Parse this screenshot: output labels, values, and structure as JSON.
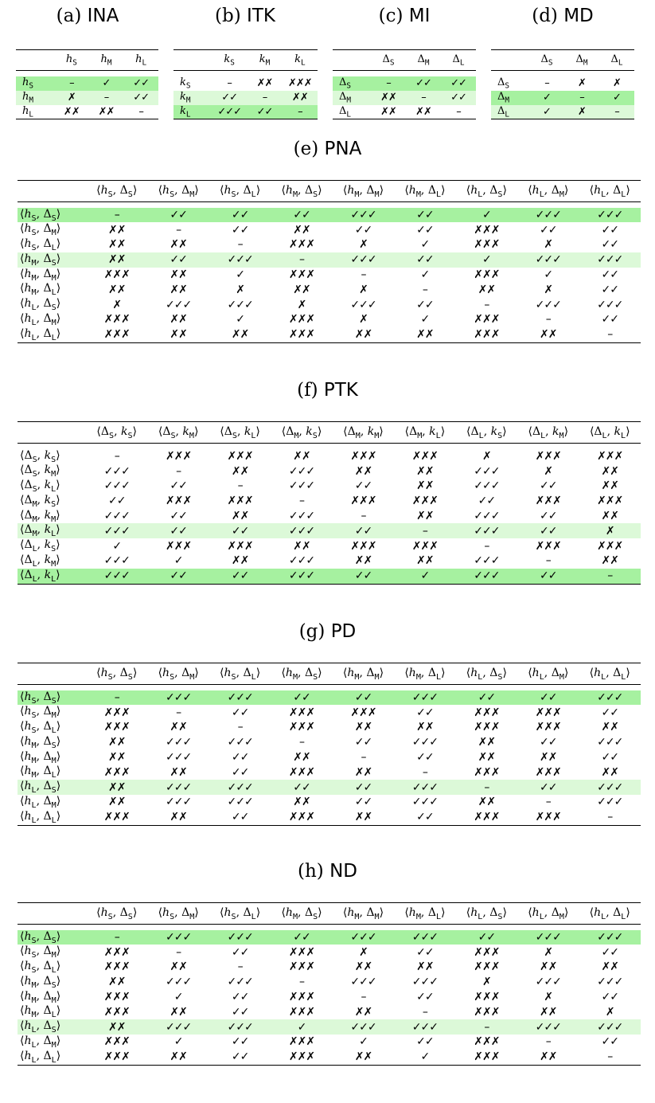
{
  "small_tables": [
    {
      "id": "a",
      "label": "(a)",
      "name": "INA",
      "cols": [
        "h_S",
        "h_M",
        "h_L"
      ],
      "rows": [
        {
          "label": "h_S",
          "cells": [
            "–",
            "✓",
            "✓✓"
          ],
          "hl": "dark"
        },
        {
          "label": "h_M",
          "cells": [
            "✗",
            "–",
            "✓✓"
          ],
          "hl": "light"
        },
        {
          "label": "h_L",
          "cells": [
            "✗✗",
            "✗✗",
            "–"
          ],
          "hl": ""
        }
      ]
    },
    {
      "id": "b",
      "label": "(b)",
      "name": "ITK",
      "cols": [
        "k_S",
        "k_M",
        "k_L"
      ],
      "rows": [
        {
          "label": "k_S",
          "cells": [
            "–",
            "✗✗",
            "✗✗✗"
          ],
          "hl": ""
        },
        {
          "label": "k_M",
          "cells": [
            "✓✓",
            "–",
            "✗✗"
          ],
          "hl": "light"
        },
        {
          "label": "k_L",
          "cells": [
            "✓✓✓",
            "✓✓",
            "–"
          ],
          "hl": "dark"
        }
      ]
    },
    {
      "id": "c",
      "label": "(c)",
      "name": "MI",
      "cols": [
        "Δ_S",
        "Δ_M",
        "Δ_L"
      ],
      "rows": [
        {
          "label": "Δ_S",
          "cells": [
            "–",
            "✓✓",
            "✓✓"
          ],
          "hl": "dark"
        },
        {
          "label": "Δ_M",
          "cells": [
            "✗✗",
            "–",
            "✓✓"
          ],
          "hl": "light"
        },
        {
          "label": "Δ_L",
          "cells": [
            "✗✗",
            "✗✗",
            "–"
          ],
          "hl": ""
        }
      ]
    },
    {
      "id": "d",
      "label": "(d)",
      "name": "MD",
      "cols": [
        "Δ_S",
        "Δ_M",
        "Δ_L"
      ],
      "rows": [
        {
          "label": "Δ_S",
          "cells": [
            "–",
            "✗",
            "✗"
          ],
          "hl": ""
        },
        {
          "label": "Δ_M",
          "cells": [
            "✓",
            "–",
            "✓"
          ],
          "hl": "dark"
        },
        {
          "label": "Δ_L",
          "cells": [
            "✓",
            "✗",
            "–"
          ],
          "hl": "light"
        }
      ]
    }
  ],
  "big_tables": [
    {
      "id": "e",
      "label": "(e)",
      "name": "PNA",
      "cols": [
        "⟨h_S, Δ_S⟩",
        "⟨h_S, Δ_M⟩",
        "⟨h_S, Δ_L⟩",
        "⟨h_M, Δ_S⟩",
        "⟨h_M, Δ_M⟩",
        "⟨h_M, Δ_L⟩",
        "⟨h_L, Δ_S⟩",
        "⟨h_L, Δ_M⟩",
        "⟨h_L, Δ_L⟩"
      ],
      "rows": [
        {
          "label": "⟨h_S, Δ_S⟩",
          "hl": "dark",
          "cells": [
            "–",
            "✓✓",
            "✓✓",
            "✓✓",
            "✓✓✓",
            "✓✓",
            "✓",
            "✓✓✓",
            "✓✓✓"
          ]
        },
        {
          "label": "⟨h_S, Δ_M⟩",
          "hl": "",
          "cells": [
            "✗✗",
            "–",
            "✓✓",
            "✗✗",
            "✓✓",
            "✓✓",
            "✗✗✗",
            "✓✓",
            "✓✓"
          ]
        },
        {
          "label": "⟨h_S, Δ_L⟩",
          "hl": "",
          "cells": [
            "✗✗",
            "✗✗",
            "–",
            "✗✗✗",
            "✗",
            "✓",
            "✗✗✗",
            "✗",
            "✓✓"
          ]
        },
        {
          "label": "⟨h_M, Δ_S⟩",
          "hl": "light",
          "cells": [
            "✗✗",
            "✓✓",
            "✓✓✓",
            "–",
            "✓✓✓",
            "✓✓",
            "✓",
            "✓✓✓",
            "✓✓✓"
          ]
        },
        {
          "label": "⟨h_M, Δ_M⟩",
          "hl": "",
          "cells": [
            "✗✗✗",
            "✗✗",
            "✓",
            "✗✗✗",
            "–",
            "✓",
            "✗✗✗",
            "✓",
            "✓✓"
          ]
        },
        {
          "label": "⟨h_M, Δ_L⟩",
          "hl": "",
          "cells": [
            "✗✗",
            "✗✗",
            "✗",
            "✗✗",
            "✗",
            "–",
            "✗✗",
            "✗",
            "✓✓"
          ]
        },
        {
          "label": "⟨h_L, Δ_S⟩",
          "hl": "",
          "cells": [
            "✗",
            "✓✓✓",
            "✓✓✓",
            "✗",
            "✓✓✓",
            "✓✓",
            "–",
            "✓✓✓",
            "✓✓✓"
          ]
        },
        {
          "label": "⟨h_L, Δ_M⟩",
          "hl": "",
          "cells": [
            "✗✗✗",
            "✗✗",
            "✓",
            "✗✗✗",
            "✗",
            "✓",
            "✗✗✗",
            "–",
            "✓✓"
          ]
        },
        {
          "label": "⟨h_L, Δ_L⟩",
          "hl": "",
          "cells": [
            "✗✗✗",
            "✗✗",
            "✗✗",
            "✗✗✗",
            "✗✗",
            "✗✗",
            "✗✗✗",
            "✗✗",
            "–"
          ]
        }
      ]
    },
    {
      "id": "f",
      "label": "(f)",
      "name": "PTK",
      "cols": [
        "⟨Δ_S, k_S⟩",
        "⟨Δ_S, k_M⟩",
        "⟨Δ_S, k_L⟩",
        "⟨Δ_M, k_S⟩",
        "⟨Δ_M, k_M⟩",
        "⟨Δ_M, k_L⟩",
        "⟨Δ_L, k_S⟩",
        "⟨Δ_L, k_M⟩",
        "⟨Δ_L, k_L⟩"
      ],
      "rows": [
        {
          "label": "⟨Δ_S, k_S⟩",
          "hl": "",
          "cells": [
            "–",
            "✗✗✗",
            "✗✗✗",
            "✗✗",
            "✗✗✗",
            "✗✗✗",
            "✗",
            "✗✗✗",
            "✗✗✗"
          ]
        },
        {
          "label": "⟨Δ_S, k_M⟩",
          "hl": "",
          "cells": [
            "✓✓✓",
            "–",
            "✗✗",
            "✓✓✓",
            "✗✗",
            "✗✗",
            "✓✓✓",
            "✗",
            "✗✗"
          ]
        },
        {
          "label": "⟨Δ_S, k_L⟩",
          "hl": "",
          "cells": [
            "✓✓✓",
            "✓✓",
            "–",
            "✓✓✓",
            "✓✓",
            "✗✗",
            "✓✓✓",
            "✓✓",
            "✗✗"
          ]
        },
        {
          "label": "⟨Δ_M, k_S⟩",
          "hl": "",
          "cells": [
            "✓✓",
            "✗✗✗",
            "✗✗✗",
            "–",
            "✗✗✗",
            "✗✗✗",
            "✓✓",
            "✗✗✗",
            "✗✗✗"
          ]
        },
        {
          "label": "⟨Δ_M, k_M⟩",
          "hl": "",
          "cells": [
            "✓✓✓",
            "✓✓",
            "✗✗",
            "✓✓✓",
            "–",
            "✗✗",
            "✓✓✓",
            "✓✓",
            "✗✗"
          ]
        },
        {
          "label": "⟨Δ_M, k_L⟩",
          "hl": "light",
          "cells": [
            "✓✓✓",
            "✓✓",
            "✓✓",
            "✓✓✓",
            "✓✓",
            "–",
            "✓✓✓",
            "✓✓",
            "✗"
          ]
        },
        {
          "label": "⟨Δ_L, k_S⟩",
          "hl": "",
          "cells": [
            "✓",
            "✗✗✗",
            "✗✗✗",
            "✗✗",
            "✗✗✗",
            "✗✗✗",
            "–",
            "✗✗✗",
            "✗✗✗"
          ]
        },
        {
          "label": "⟨Δ_L, k_M⟩",
          "hl": "",
          "cells": [
            "✓✓✓",
            "✓",
            "✗✗",
            "✓✓✓",
            "✗✗",
            "✗✗",
            "✓✓✓",
            "–",
            "✗✗"
          ]
        },
        {
          "label": "⟨Δ_L, k_L⟩",
          "hl": "dark",
          "cells": [
            "✓✓✓",
            "✓✓",
            "✓✓",
            "✓✓✓",
            "✓✓",
            "✓",
            "✓✓✓",
            "✓✓",
            "–"
          ]
        }
      ]
    },
    {
      "id": "g",
      "label": "(g)",
      "name": "PD",
      "cols": [
        "⟨h_S, Δ_S⟩",
        "⟨h_S, Δ_M⟩",
        "⟨h_S, Δ_L⟩",
        "⟨h_M, Δ_S⟩",
        "⟨h_M, Δ_M⟩",
        "⟨h_M, Δ_L⟩",
        "⟨h_L, Δ_S⟩",
        "⟨h_L, Δ_M⟩",
        "⟨h_L, Δ_L⟩"
      ],
      "rows": [
        {
          "label": "⟨h_S, Δ_S⟩",
          "hl": "dark",
          "cells": [
            "–",
            "✓✓✓",
            "✓✓✓",
            "✓✓",
            "✓✓",
            "✓✓✓",
            "✓✓",
            "✓✓",
            "✓✓✓"
          ]
        },
        {
          "label": "⟨h_S, Δ_M⟩",
          "hl": "",
          "cells": [
            "✗✗✗",
            "–",
            "✓✓",
            "✗✗✗",
            "✗✗✗",
            "✓✓",
            "✗✗✗",
            "✗✗✗",
            "✓✓"
          ]
        },
        {
          "label": "⟨h_S, Δ_L⟩",
          "hl": "",
          "cells": [
            "✗✗✗",
            "✗✗",
            "–",
            "✗✗✗",
            "✗✗",
            "✗✗",
            "✗✗✗",
            "✗✗✗",
            "✗✗"
          ]
        },
        {
          "label": "⟨h_M, Δ_S⟩",
          "hl": "",
          "cells": [
            "✗✗",
            "✓✓✓",
            "✓✓✓",
            "–",
            "✓✓",
            "✓✓✓",
            "✗✗",
            "✓✓",
            "✓✓✓"
          ]
        },
        {
          "label": "⟨h_M, Δ_M⟩",
          "hl": "",
          "cells": [
            "✗✗",
            "✓✓✓",
            "✓✓",
            "✗✗",
            "–",
            "✓✓",
            "✗✗",
            "✗✗",
            "✓✓"
          ]
        },
        {
          "label": "⟨h_M, Δ_L⟩",
          "hl": "",
          "cells": [
            "✗✗✗",
            "✗✗",
            "✓✓",
            "✗✗✗",
            "✗✗",
            "–",
            "✗✗✗",
            "✗✗✗",
            "✗✗"
          ]
        },
        {
          "label": "⟨h_L, Δ_S⟩",
          "hl": "light",
          "cells": [
            "✗✗",
            "✓✓✓",
            "✓✓✓",
            "✓✓",
            "✓✓",
            "✓✓✓",
            "–",
            "✓✓",
            "✓✓✓"
          ]
        },
        {
          "label": "⟨h_L, Δ_M⟩",
          "hl": "",
          "cells": [
            "✗✗",
            "✓✓✓",
            "✓✓✓",
            "✗✗",
            "✓✓",
            "✓✓✓",
            "✗✗",
            "–",
            "✓✓✓"
          ]
        },
        {
          "label": "⟨h_L, Δ_L⟩",
          "hl": "",
          "cells": [
            "✗✗✗",
            "✗✗",
            "✓✓",
            "✗✗✗",
            "✗✗",
            "✓✓",
            "✗✗✗",
            "✗✗✗",
            "–"
          ]
        }
      ]
    },
    {
      "id": "h",
      "label": "(h)",
      "name": "ND",
      "cols": [
        "⟨h_S, Δ_S⟩",
        "⟨h_S, Δ_M⟩",
        "⟨h_S, Δ_L⟩",
        "⟨h_M, Δ_S⟩",
        "⟨h_M, Δ_M⟩",
        "⟨h_M, Δ_L⟩",
        "⟨h_L, Δ_S⟩",
        "⟨h_L, Δ_M⟩",
        "⟨h_L, Δ_L⟩"
      ],
      "rows": [
        {
          "label": "⟨h_S, Δ_S⟩",
          "hl": "dark",
          "cells": [
            "–",
            "✓✓✓",
            "✓✓✓",
            "✓✓",
            "✓✓✓",
            "✓✓✓",
            "✓✓",
            "✓✓✓",
            "✓✓✓"
          ]
        },
        {
          "label": "⟨h_S, Δ_M⟩",
          "hl": "",
          "cells": [
            "✗✗✗",
            "–",
            "✓✓",
            "✗✗✗",
            "✗",
            "✓✓",
            "✗✗✗",
            "✗",
            "✓✓"
          ]
        },
        {
          "label": "⟨h_S, Δ_L⟩",
          "hl": "",
          "cells": [
            "✗✗✗",
            "✗✗",
            "–",
            "✗✗✗",
            "✗✗",
            "✗✗",
            "✗✗✗",
            "✗✗",
            "✗✗"
          ]
        },
        {
          "label": "⟨h_M, Δ_S⟩",
          "hl": "",
          "cells": [
            "✗✗",
            "✓✓✓",
            "✓✓✓",
            "–",
            "✓✓✓",
            "✓✓✓",
            "✗",
            "✓✓✓",
            "✓✓✓"
          ]
        },
        {
          "label": "⟨h_M, Δ_M⟩",
          "hl": "",
          "cells": [
            "✗✗✗",
            "✓",
            "✓✓",
            "✗✗✗",
            "–",
            "✓✓",
            "✗✗✗",
            "✗",
            "✓✓"
          ]
        },
        {
          "label": "⟨h_M, Δ_L⟩",
          "hl": "",
          "cells": [
            "✗✗✗",
            "✗✗",
            "✓✓",
            "✗✗✗",
            "✗✗",
            "–",
            "✗✗✗",
            "✗✗",
            "✗"
          ]
        },
        {
          "label": "⟨h_L, Δ_S⟩",
          "hl": "light",
          "cells": [
            "✗✗",
            "✓✓✓",
            "✓✓✓",
            "✓",
            "✓✓✓",
            "✓✓✓",
            "–",
            "✓✓✓",
            "✓✓✓"
          ]
        },
        {
          "label": "⟨h_L, Δ_M⟩",
          "hl": "",
          "cells": [
            "✗✗✗",
            "✓",
            "✓✓",
            "✗✗✗",
            "✓",
            "✓✓",
            "✗✗✗",
            "–",
            "✓✓"
          ]
        },
        {
          "label": "⟨h_L, Δ_L⟩",
          "hl": "",
          "cells": [
            "✗✗✗",
            "✗✗",
            "✓✓",
            "✗✗✗",
            "✗✗",
            "✓",
            "✗✗✗",
            "✗✗",
            "–"
          ]
        }
      ]
    }
  ]
}
